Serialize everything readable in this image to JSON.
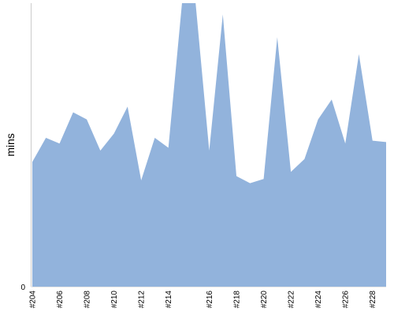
{
  "chart_data": {
    "type": "area",
    "title": "",
    "xlabel": "",
    "ylabel": "mins",
    "fill_color": "#92b3dc",
    "axis_color": "#cccccc",
    "ylim": [
      0,
      100
    ],
    "y_ticks": [
      0
    ],
    "grid": false,
    "legend": "none",
    "x": [
      "#204",
      "#205",
      "#206",
      "#207",
      "#208",
      "#209",
      "#210",
      "#211",
      "#212",
      "#213",
      "#214",
      "#214.5",
      "#215",
      "#216",
      "#217",
      "#218",
      "#219",
      "#220",
      "#221",
      "#222",
      "#223",
      "#224",
      "#225",
      "#226",
      "#227",
      "#228",
      "#229"
    ],
    "x_tick_labels": [
      "#204",
      "#206",
      "#208",
      "#210",
      "#212",
      "#214",
      "#216",
      "#218",
      "#220",
      "#222",
      "#224",
      "#226",
      "#228"
    ],
    "series": [
      {
        "values": [
          44,
          52.5,
          50.5,
          61.5,
          59,
          48,
          54,
          63.5,
          37.5,
          52.5,
          49,
          100,
          100,
          48,
          96,
          39,
          36.5,
          38,
          88,
          40.5,
          45,
          59,
          66,
          50.5,
          82,
          51.5,
          51
        ]
      }
    ]
  }
}
